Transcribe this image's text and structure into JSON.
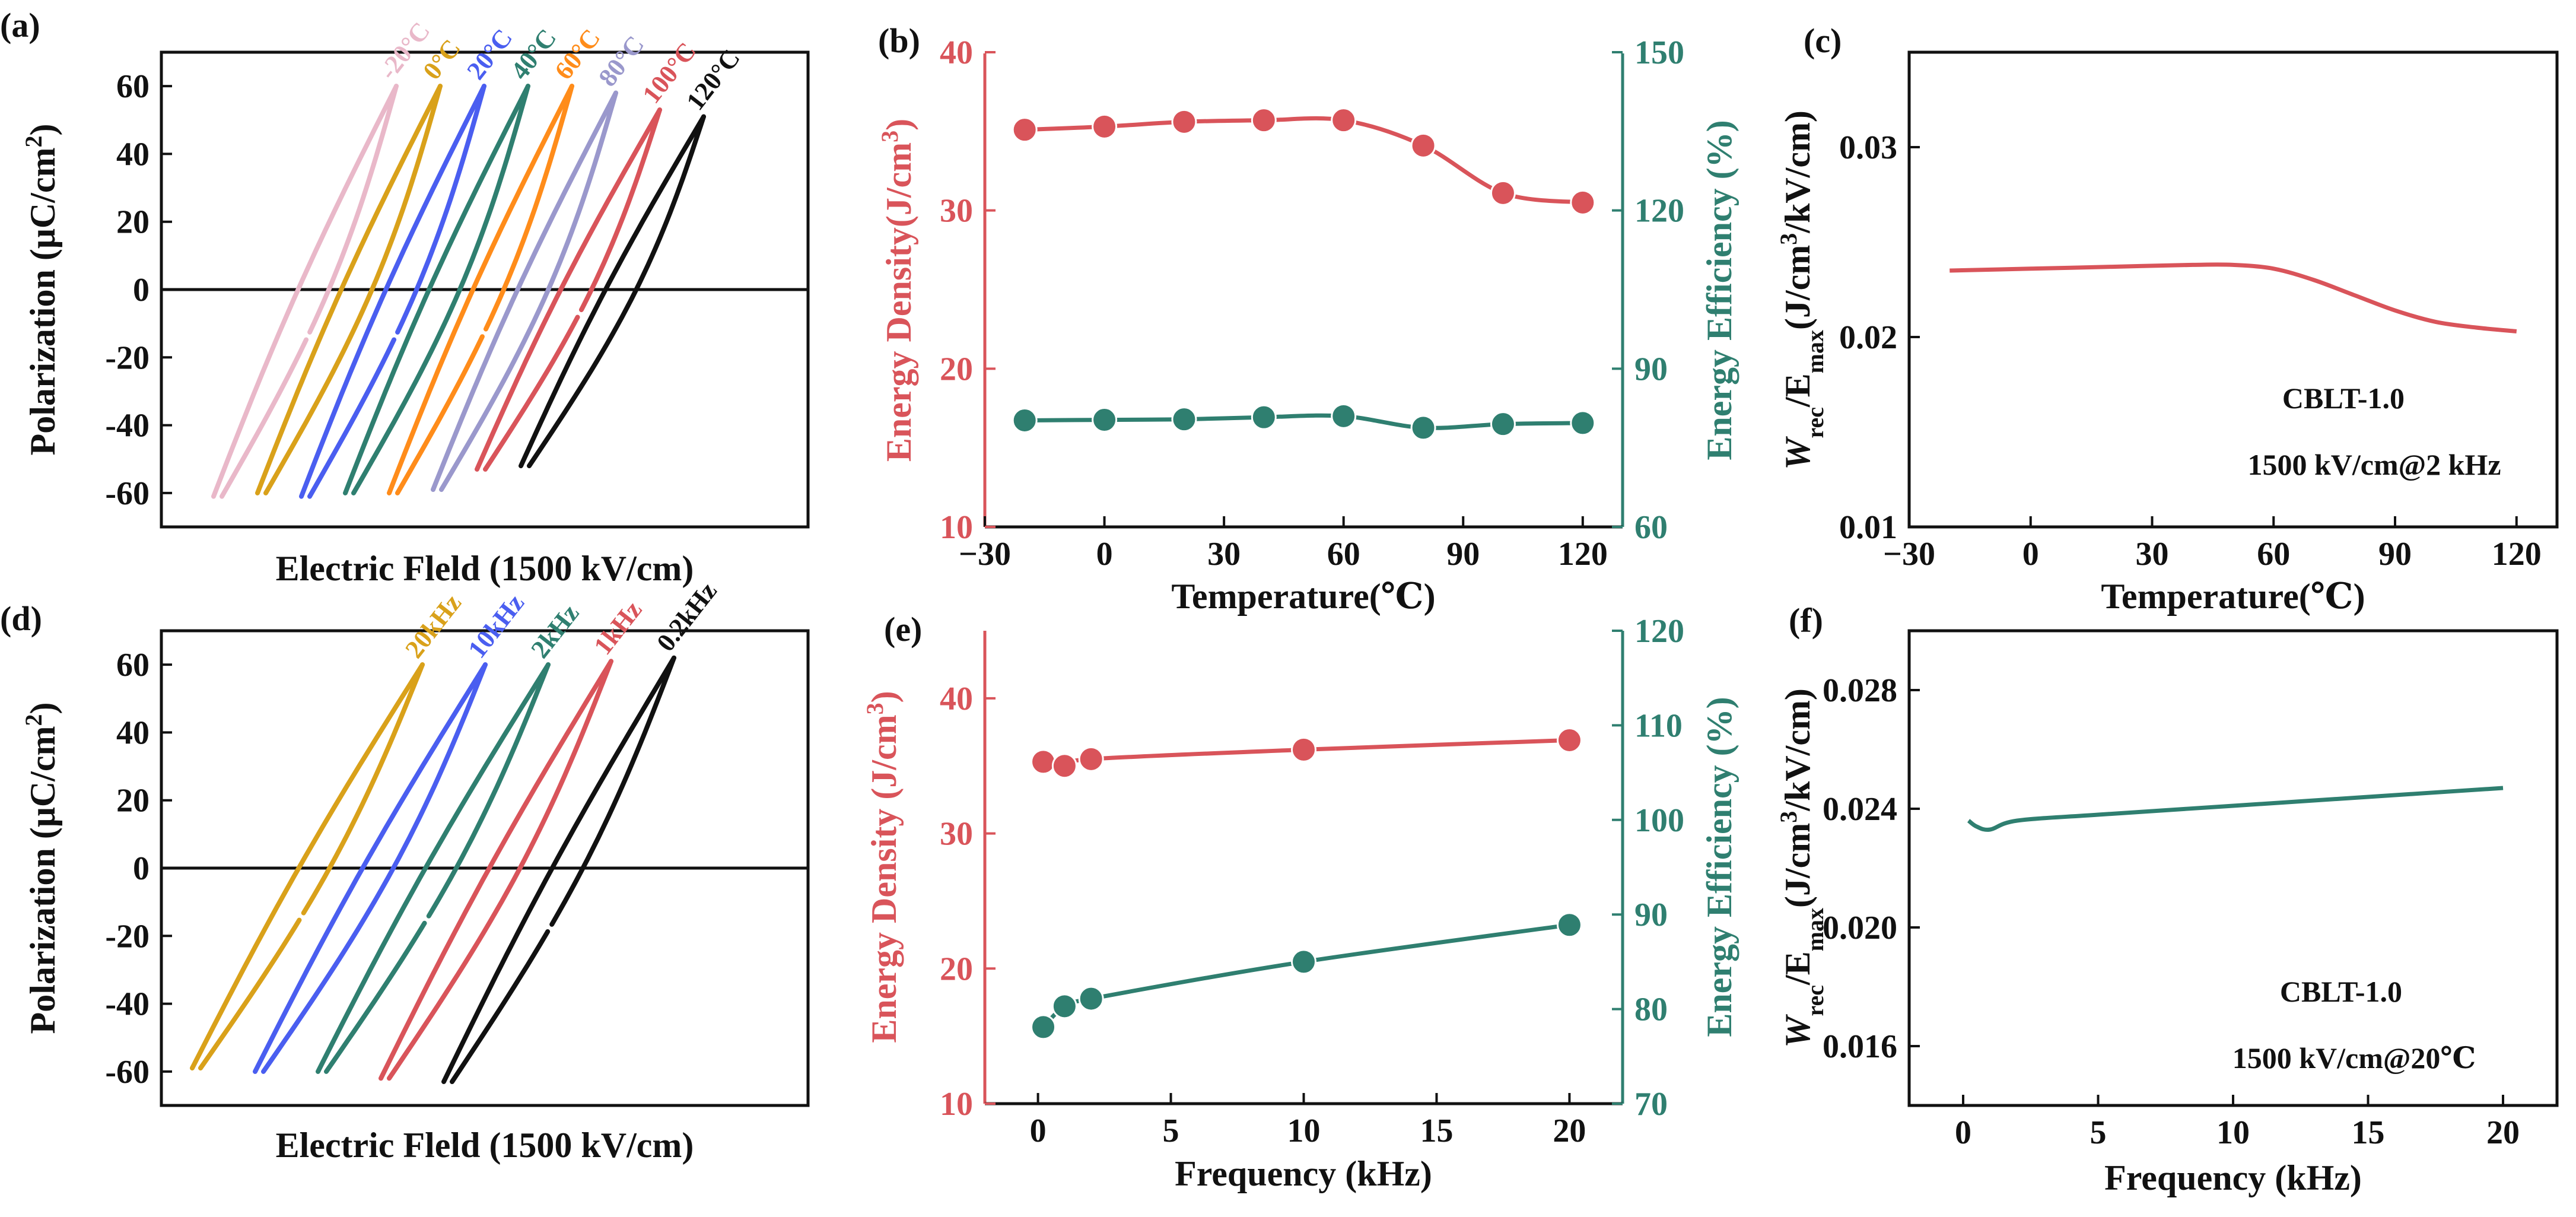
{
  "colors": {
    "red": "#d9545a",
    "teal": "#2f7f70",
    "axis": "#111111",
    "pinkish": "#e9b8c9",
    "gold": "#d9a11a",
    "blue": "#4a5ef0",
    "orange": "#ff8c1a",
    "lavender": "#9a98cc",
    "black": "#111111"
  },
  "chart_data": [
    {
      "panel": "(a)",
      "type": "line",
      "title": "",
      "xlabel": "Electric Fleld (1500 kV/cm)",
      "ylabel": "Polarization (μC/cm²)",
      "ylim": [
        -70,
        70
      ],
      "yticks": [
        "60",
        "40",
        "20",
        "0",
        "-20",
        "-40",
        "-60"
      ],
      "yticks_values": [
        60,
        40,
        20,
        0,
        -20,
        -40,
        -60
      ],
      "legend": "curve labels at upper ends",
      "series": [
        {
          "name": "-20°C",
          "color": "#e9b8c9",
          "p_max": 60,
          "p_min": -61,
          "pr": 20,
          "tip_shift": 0
        },
        {
          "name": "0°C",
          "color": "#d9a11a",
          "p_max": 60,
          "p_min": -60,
          "pr": 20,
          "tip_shift": 1
        },
        {
          "name": "20°C",
          "color": "#4a5ef0",
          "p_max": 60,
          "p_min": -61,
          "pr": 20,
          "tip_shift": 2
        },
        {
          "name": "40°C",
          "color": "#2f7f70",
          "p_max": 60,
          "p_min": -60,
          "pr": 20,
          "tip_shift": 3
        },
        {
          "name": "60°C",
          "color": "#ff8c1a",
          "p_max": 60,
          "p_min": -60,
          "pr": 20,
          "tip_shift": 4
        },
        {
          "name": "80°C",
          "color": "#9a98cc",
          "p_max": 58,
          "p_min": -59,
          "pr": 20,
          "tip_shift": 5
        },
        {
          "name": "100°C",
          "color": "#d9545a",
          "p_max": 53,
          "p_min": -53,
          "pr": 18,
          "tip_shift": 6
        },
        {
          "name": "120°C",
          "color": "#111111",
          "p_max": 51,
          "p_min": -52,
          "pr": 16,
          "tip_shift": 7
        }
      ]
    },
    {
      "panel": "(b)",
      "type": "line",
      "title": "",
      "xlabel": "Temperature(℃)",
      "ylabel_left": "Energy Density(J/cm³)",
      "ylabel_right": "Energy Efficiency (%)",
      "x_ticks": [
        "−30",
        "0",
        "30",
        "60",
        "90",
        "120"
      ],
      "xlim": [
        -30,
        130
      ],
      "ylim_left": [
        10,
        40
      ],
      "yticks_left": [
        "40",
        "30",
        "20",
        "10"
      ],
      "ylim_right": [
        60,
        150
      ],
      "yticks_right": [
        "150",
        "120",
        "90",
        "60"
      ],
      "x": [
        -20,
        0,
        20,
        40,
        60,
        80,
        100,
        120
      ],
      "series": [
        {
          "name": "Energy Density",
          "axis": "left",
          "color": "#d9545a",
          "values": [
            35.1,
            35.3,
            35.6,
            35.7,
            35.7,
            34.1,
            31.1,
            30.5
          ]
        },
        {
          "name": "Energy Efficiency",
          "axis": "right",
          "color": "#2f7f70",
          "values": [
            80.2,
            80.3,
            80.4,
            80.8,
            81.0,
            78.8,
            79.5,
            79.7
          ]
        }
      ]
    },
    {
      "panel": "(c)",
      "type": "line",
      "title": "",
      "xlabel": "Temperature(℃)",
      "ylabel": "Wrec/Emax(J/cm³/kV/cm)",
      "ylabel_parts": {
        "w": "W",
        "rec": "rec",
        "mid": "/E",
        "max": "max",
        "tail": "(J/cm",
        "sup": "3",
        "end": "/kV/cm)"
      },
      "x_ticks": [
        "−30",
        "0",
        "30",
        "60",
        "90",
        "120"
      ],
      "xlim": [
        -30,
        130
      ],
      "ylim": [
        0.01,
        0.035
      ],
      "yticks": [
        "0.03",
        "0.02",
        "0.01"
      ],
      "annotations": [
        "CBLT-1.0",
        "1500 kV/cm@2 kHz"
      ],
      "x": [
        -20,
        0,
        20,
        40,
        50,
        60,
        70,
        80,
        90,
        100,
        110,
        120
      ],
      "series": [
        {
          "name": "Wrec/Emax",
          "color": "#d9545a",
          "values": [
            0.0235,
            0.0236,
            0.0237,
            0.0238,
            0.0238,
            0.0236,
            0.023,
            0.0222,
            0.0214,
            0.0208,
            0.0205,
            0.0203
          ]
        }
      ]
    },
    {
      "panel": "(d)",
      "type": "line",
      "title": "",
      "xlabel": "Electric Fleld (1500 kV/cm)",
      "ylabel": "Polarization (μC/cm²)",
      "ylim": [
        -70,
        70
      ],
      "yticks": [
        "60",
        "40",
        "20",
        "0",
        "-20",
        "-40",
        "-60"
      ],
      "yticks_values": [
        60,
        40,
        20,
        0,
        -20,
        -40,
        -60
      ],
      "legend": "curve labels at upper ends",
      "series": [
        {
          "name": "20kHz",
          "color": "#d9a11a",
          "p_max": 60,
          "p_min": -59,
          "pr": 18,
          "tip_shift": 0
        },
        {
          "name": "10kHz",
          "color": "#4a5ef0",
          "p_max": 60,
          "p_min": -60,
          "pr": 18,
          "tip_shift": 1
        },
        {
          "name": "2kHz",
          "color": "#2f7f70",
          "p_max": 60,
          "p_min": -60,
          "pr": 18,
          "tip_shift": 2
        },
        {
          "name": "1kHz",
          "color": "#d9545a",
          "p_max": 61,
          "p_min": -62,
          "pr": 18,
          "tip_shift": 3
        },
        {
          "name": "0.2kHz",
          "color": "#111111",
          "p_max": 62,
          "p_min": -63,
          "pr": 16,
          "tip_shift": 4
        }
      ]
    },
    {
      "panel": "(e)",
      "type": "line",
      "title": "",
      "xlabel": "Frequency (kHz)",
      "ylabel_left": "Energy Density (J/cm³)",
      "ylabel_right": "Energy Efficiency (%)",
      "x_ticks": [
        "0",
        "5",
        "10",
        "15",
        "20"
      ],
      "xlim": [
        -2,
        22
      ],
      "ylim_left": [
        10,
        45
      ],
      "yticks_left": [
        "40",
        "30",
        "20",
        "10"
      ],
      "ylim_right": [
        70,
        120
      ],
      "yticks_right": [
        "120",
        "110",
        "100",
        "90",
        "80",
        "70"
      ],
      "x": [
        0.2,
        1,
        2,
        10,
        20
      ],
      "series": [
        {
          "name": "Energy Density",
          "axis": "left",
          "color": "#d9545a",
          "values": [
            35.3,
            35.0,
            35.5,
            36.2,
            36.9
          ]
        },
        {
          "name": "Energy Efficiency",
          "axis": "right",
          "color": "#2f7f70",
          "values": [
            78.1,
            80.3,
            81.1,
            85.0,
            88.9
          ]
        }
      ]
    },
    {
      "panel": "(f)",
      "type": "line",
      "title": "",
      "xlabel": "Frequency (kHz)",
      "ylabel": "Wrec/Emax(J/cm³/kV/cm)",
      "ylabel_parts": {
        "w": "W",
        "rec": "rec",
        "mid": "/E",
        "max": "max",
        "tail": "(J/cm",
        "sup": "3",
        "end": "/kV/cm)"
      },
      "x_ticks": [
        "0",
        "5",
        "10",
        "15",
        "20"
      ],
      "xlim": [
        -2,
        22
      ],
      "ylim": [
        0.014,
        0.03
      ],
      "yticks": [
        "0.028",
        "0.024",
        "0.020",
        "0.016"
      ],
      "annotations": [
        "CBLT-1.0",
        "1500 kV/cm@20℃"
      ],
      "x": [
        0.2,
        0.5,
        1,
        2,
        5,
        10,
        15,
        20
      ],
      "series": [
        {
          "name": "Wrec/Emax",
          "color": "#2f7f70",
          "values": [
            0.0236,
            0.0234,
            0.0233,
            0.0236,
            0.0238,
            0.0241,
            0.0244,
            0.0247
          ]
        }
      ]
    }
  ]
}
